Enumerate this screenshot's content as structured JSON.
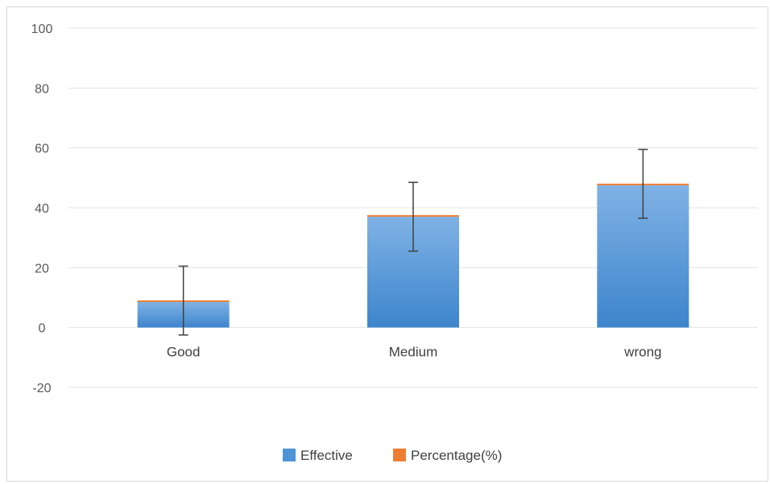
{
  "chart_data": {
    "type": "bar",
    "stacked": true,
    "categories": [
      "Good",
      "Medium",
      "wrong"
    ],
    "series": [
      {
        "name": "Effective",
        "values": [
          8.5,
          37,
          47.5
        ],
        "color": "#4e93d6"
      },
      {
        "name": "Percentage(%)",
        "values": [
          0.5,
          0.5,
          0.5
        ],
        "color": "#ed7d31"
      }
    ],
    "error_bars": [
      {
        "low": -2.5,
        "high": 20.5
      },
      {
        "low": 25.5,
        "high": 48.5
      },
      {
        "low": 36.5,
        "high": 59.5
      }
    ],
    "ylim": [
      -20,
      100
    ],
    "yticks": [
      -20,
      0,
      20,
      40,
      60,
      80,
      100
    ],
    "grid": true,
    "legend_position": "bottom"
  }
}
